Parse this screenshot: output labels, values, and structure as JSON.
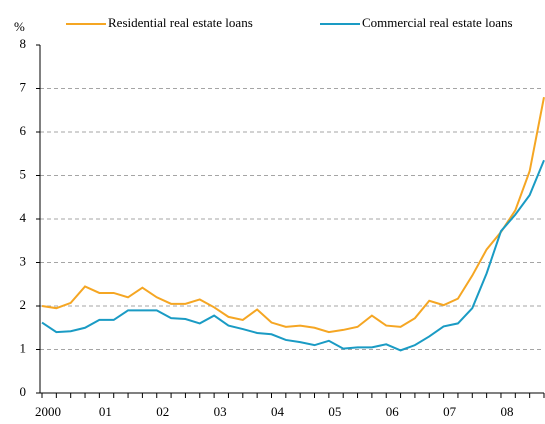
{
  "chart_data": {
    "type": "line",
    "y_label": "%",
    "categories": [
      "2000",
      null,
      null,
      null,
      "01",
      null,
      null,
      null,
      "02",
      null,
      null,
      null,
      "03",
      null,
      null,
      null,
      "04",
      null,
      null,
      null,
      "05",
      null,
      null,
      null,
      "06",
      null,
      null,
      null,
      "07",
      null,
      null,
      null,
      "08",
      null,
      null,
      null
    ],
    "series": [
      {
        "name": "Residential real estate loans",
        "color": "#f5a623",
        "values": [
          2.0,
          1.95,
          2.07,
          2.45,
          2.3,
          2.3,
          2.2,
          2.42,
          2.2,
          2.05,
          2.05,
          2.15,
          1.97,
          1.75,
          1.68,
          1.92,
          1.62,
          1.52,
          1.55,
          1.5,
          1.4,
          1.45,
          1.52,
          1.78,
          1.55,
          1.52,
          1.72,
          2.12,
          2.02,
          2.17,
          2.7,
          3.3,
          3.7,
          4.2,
          5.1,
          6.8
        ]
      },
      {
        "name": "Commercial real estate loans",
        "color": "#1a9bc4",
        "values": [
          1.62,
          1.4,
          1.42,
          1.5,
          1.68,
          1.68,
          1.9,
          1.9,
          1.9,
          1.72,
          1.7,
          1.6,
          1.78,
          1.55,
          1.47,
          1.38,
          1.35,
          1.22,
          1.17,
          1.1,
          1.2,
          1.02,
          1.05,
          1.05,
          1.12,
          0.98,
          1.1,
          1.3,
          1.53,
          1.6,
          1.95,
          2.75,
          3.72,
          4.1,
          4.55,
          5.35
        ]
      }
    ],
    "ylim": [
      0,
      8
    ],
    "yticks": [
      0,
      1,
      2,
      3,
      4,
      5,
      6,
      7,
      8
    ],
    "grid": true,
    "legend": "top"
  }
}
